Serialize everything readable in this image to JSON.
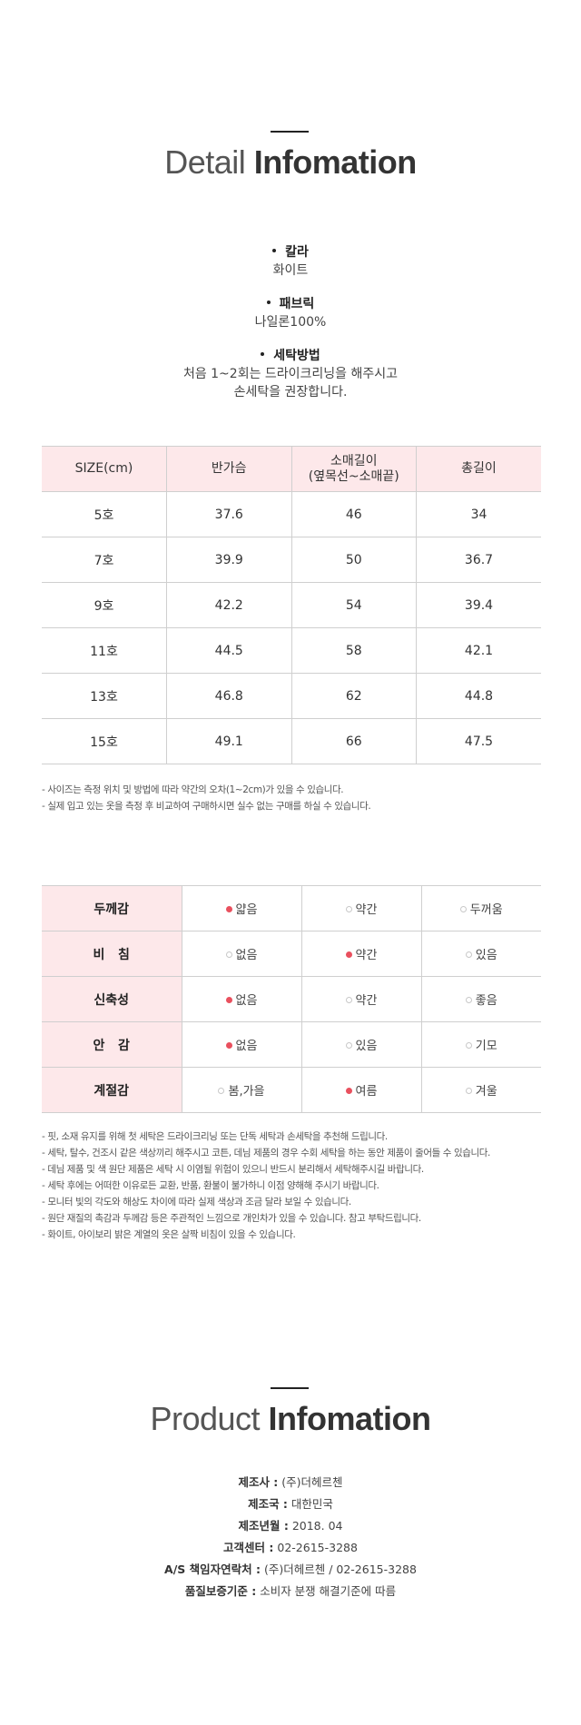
{
  "detail": {
    "title_light": "Detail",
    "title_bold": "Infomation",
    "specs": [
      {
        "label": "칼라",
        "lines": [
          "화이트"
        ]
      },
      {
        "label": "패브릭",
        "lines": [
          "나일론100%"
        ]
      },
      {
        "label": "세탁방법",
        "lines": [
          "처음 1~2회는 드라이크리닝을 해주시고",
          "손세탁을 권장합니다."
        ]
      }
    ]
  },
  "size_table": {
    "headers": [
      "SIZE(cm)",
      "반가슴",
      "소매길이",
      "(옆목선~소매끝)",
      "총길이"
    ],
    "rows": [
      [
        "5호",
        "37.6",
        "46",
        "34"
      ],
      [
        "7호",
        "39.9",
        "50",
        "36.7"
      ],
      [
        "9호",
        "42.2",
        "54",
        "39.4"
      ],
      [
        "11호",
        "44.5",
        "58",
        "42.1"
      ],
      [
        "13호",
        "46.8",
        "62",
        "44.8"
      ],
      [
        "15호",
        "49.1",
        "66",
        "47.5"
      ]
    ],
    "notes": [
      "- 사이즈는 측정 위치 및 방법에 따라 약간의 오차(1~2cm)가 있을 수 있습니다.",
      "- 실제 입고 있는 옷을 측정 후 비교하여 구매하시면 실수 없는 구매를 하실 수 있습니다."
    ]
  },
  "attributes": {
    "accent_color": "#e9505e",
    "header_bg": "#fde8ea",
    "rows": [
      {
        "label": "두께감",
        "options": [
          "얇음",
          "약간",
          "두꺼움"
        ],
        "selected": 0
      },
      {
        "label": "비   침",
        "options": [
          "없음",
          "약간",
          "있음"
        ],
        "selected": 1
      },
      {
        "label": "신축성",
        "options": [
          "없음",
          "약간",
          "좋음"
        ],
        "selected": 0
      },
      {
        "label": "안   감",
        "options": [
          "없음",
          "있음",
          "기모"
        ],
        "selected": 0
      },
      {
        "label": "계절감",
        "options": [
          "봄,가을",
          "여름",
          "겨울"
        ],
        "selected": 1
      }
    ],
    "notes": [
      "- 핏, 소재 유지를 위해 첫 세탁은 드라이크리닝 또는 단독 세탁과 손세탁을 추천해 드립니다.",
      "- 세탁, 탈수, 건조시 같은 색상끼리 해주시고 코튼, 데님 제품의 경우 수회 세탁을 하는 동안 제품이 줄어들 수 있습니다.",
      "- 데님 제품 및 색 원단 제품은 세탁 시 이염될 위험이 있으니 반드시 분리해서 세탁해주시길 바랍니다.",
      "- 세탁 후에는 어떠한 이유로든 교환, 반품, 환불이 불가하니 이점 양해해 주시기 바랍니다.",
      "- 모니터 빛의 각도와 해상도 차이에 따라 실제 색상과 조금 달라 보일 수 있습니다.",
      "- 원단 재질의 촉감과 두께감 등은 주관적인 느낌으로 개인차가 있을 수 있습니다. 참고 부탁드립니다.",
      "- 화이트, 아이보리 밝은 계열의 옷은 살짝 비침이 있을 수 있습니다."
    ]
  },
  "product": {
    "title_light": "Product",
    "title_bold": "Infomation",
    "items": [
      {
        "k": "제조사 :",
        "v": "(주)더헤르첸"
      },
      {
        "k": "제조국 :",
        "v": "대한민국"
      },
      {
        "k": "제조년월 :",
        "v": "2018. 04"
      },
      {
        "k": "고객센터 :",
        "v": "02-2615-3288"
      },
      {
        "k": "A/S 책임자연락처 :",
        "v": "(주)더헤르첸 / 02-2615-3288"
      },
      {
        "k": "품질보증기준 :",
        "v": "소비자 분쟁 해결기준에 따름"
      }
    ]
  }
}
